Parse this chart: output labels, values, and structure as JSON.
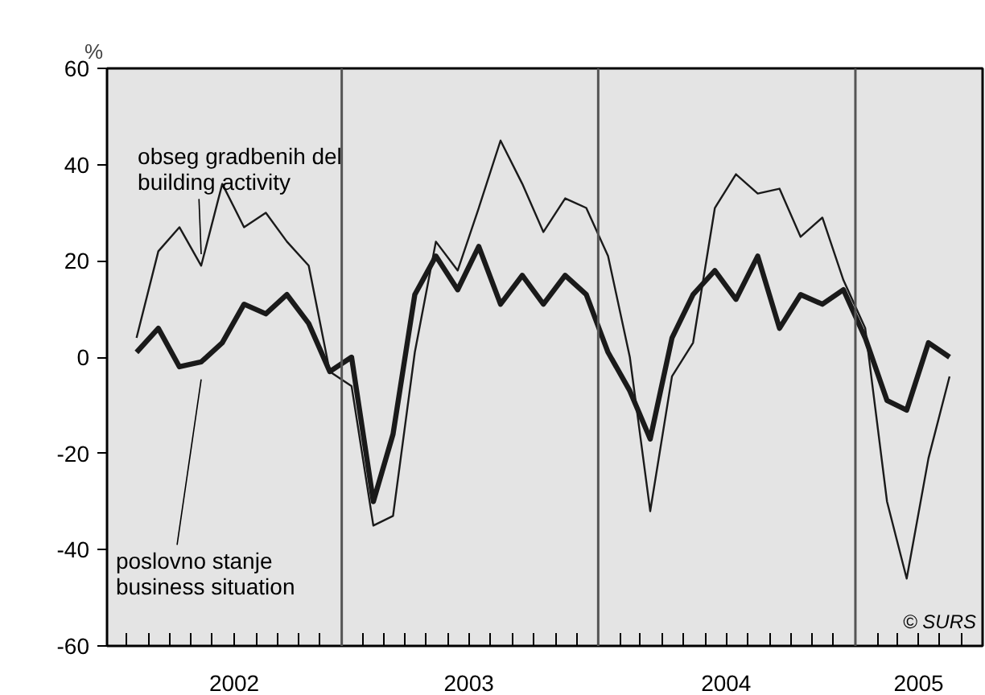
{
  "chart_data": {
    "type": "line",
    "ylabel": "%",
    "x": [
      "2002-03-15",
      "2002-04-15",
      "2002-05-15",
      "2002-06-15",
      "2002-07-15",
      "2002-08-15",
      "2002-09-15",
      "2002-10-15",
      "2002-11-15",
      "2002-12-15",
      "2003-01-15",
      "2003-02-15",
      "2003-03-15",
      "2003-04-15",
      "2003-05-15",
      "2003-06-15",
      "2003-07-15",
      "2003-08-15",
      "2003-09-15",
      "2003-10-15",
      "2003-11-15",
      "2003-12-15",
      "2004-01-15",
      "2004-02-15",
      "2004-03-15",
      "2004-04-15",
      "2004-05-15",
      "2004-06-15",
      "2004-07-15",
      "2004-08-15",
      "2004-09-15",
      "2004-10-15",
      "2004-11-15",
      "2004-12-15",
      "2005-01-15",
      "2005-02-15",
      "2005-03-15",
      "2005-04-15",
      "2005-05-15"
    ],
    "series": [
      {
        "name": "obseg gradbenih del\nbuilding activity",
        "color": "#1a1a1a",
        "values": [
          4,
          22,
          27,
          19,
          36,
          27,
          30,
          24,
          19,
          -3,
          -6,
          -35,
          -33,
          1,
          24,
          18,
          31,
          45,
          36,
          26,
          33,
          31,
          21,
          0,
          -32,
          -4,
          3,
          31,
          38,
          34,
          35,
          25,
          29,
          16,
          6,
          -30,
          -46,
          -21,
          -4
        ]
      },
      {
        "name": "poslovno stanje\nbusiness situation",
        "color": "#1a1a1a",
        "values": [
          1,
          6,
          -2,
          -1,
          3,
          11,
          9,
          13,
          7,
          -3,
          0,
          -30,
          -16,
          13,
          21,
          14,
          23,
          11,
          17,
          11,
          17,
          13,
          1,
          -7,
          -17,
          4,
          13,
          18,
          12,
          21,
          6,
          13,
          11,
          14,
          4,
          -9,
          -11,
          3,
          0
        ]
      }
    ],
    "xlim": [
      "2002-02",
      "2005-07"
    ],
    "xticks": [
      {
        "value": "2002-08",
        "label": "2002"
      },
      {
        "value": "2003-07",
        "label": "2003"
      },
      {
        "value": "2004-07",
        "label": "2004"
      },
      {
        "value": "2005-04",
        "label": "2005"
      },
      {
        "value": "2002-03",
        "label": null
      },
      {
        "value": "2002-04",
        "label": null
      },
      {
        "value": "2002-05",
        "label": null
      },
      {
        "value": "2002-06",
        "label": null
      },
      {
        "value": "2002-07",
        "label": null
      },
      {
        "value": "2002-08",
        "label": null
      },
      {
        "value": "2002-09",
        "label": null
      },
      {
        "value": "2002-10",
        "label": null
      },
      {
        "value": "2002-11",
        "label": null
      },
      {
        "value": "2002-12",
        "label": null
      },
      {
        "value": "2003-01",
        "label": null
      },
      {
        "value": "2003-02",
        "label": null
      },
      {
        "value": "2003-03",
        "label": null
      },
      {
        "value": "2003-04",
        "label": null
      },
      {
        "value": "2003-05",
        "label": null
      },
      {
        "value": "2003-06",
        "label": null
      },
      {
        "value": "2003-07",
        "label": null
      },
      {
        "value": "2003-08",
        "label": null
      },
      {
        "value": "2003-09",
        "label": null
      },
      {
        "value": "2003-10",
        "label": null
      },
      {
        "value": "2003-11",
        "label": null
      },
      {
        "value": "2003-12",
        "label": null
      },
      {
        "value": "2004-01",
        "label": null
      },
      {
        "value": "2004-02",
        "label": null
      },
      {
        "value": "2004-03",
        "label": null
      },
      {
        "value": "2004-04",
        "label": null
      },
      {
        "value": "2004-05",
        "label": null
      },
      {
        "value": "2004-06",
        "label": null
      },
      {
        "value": "2004-07",
        "label": null
      },
      {
        "value": "2004-08",
        "label": null
      },
      {
        "value": "2004-09",
        "label": null
      },
      {
        "value": "2004-10",
        "label": null
      },
      {
        "value": "2004-11",
        "label": null
      },
      {
        "value": "2004-12",
        "label": null
      },
      {
        "value": "2005-01",
        "label": null
      },
      {
        "value": "2005-02",
        "label": null
      },
      {
        "value": "2005-03",
        "label": null
      },
      {
        "value": "2005-04",
        "label": null
      },
      {
        "value": "2005-05",
        "label": null
      },
      {
        "value": "2005-06",
        "label": null
      }
    ],
    "ylim": [
      -60,
      60
    ],
    "yticks": [
      -60,
      -40,
      -20,
      0,
      20,
      40,
      60
    ],
    "ref_lines": [
      {
        "axis": "x",
        "value": "2003-01",
        "color": "#555555"
      },
      {
        "axis": "x",
        "value": "2004-01",
        "color": "#555555"
      },
      {
        "axis": "x",
        "value": "2005-01",
        "color": "#555555"
      }
    ],
    "annotations": [
      "© SURS"
    ],
    "grid": false,
    "legend": false,
    "marker": "none",
    "line_style": "solid"
  }
}
